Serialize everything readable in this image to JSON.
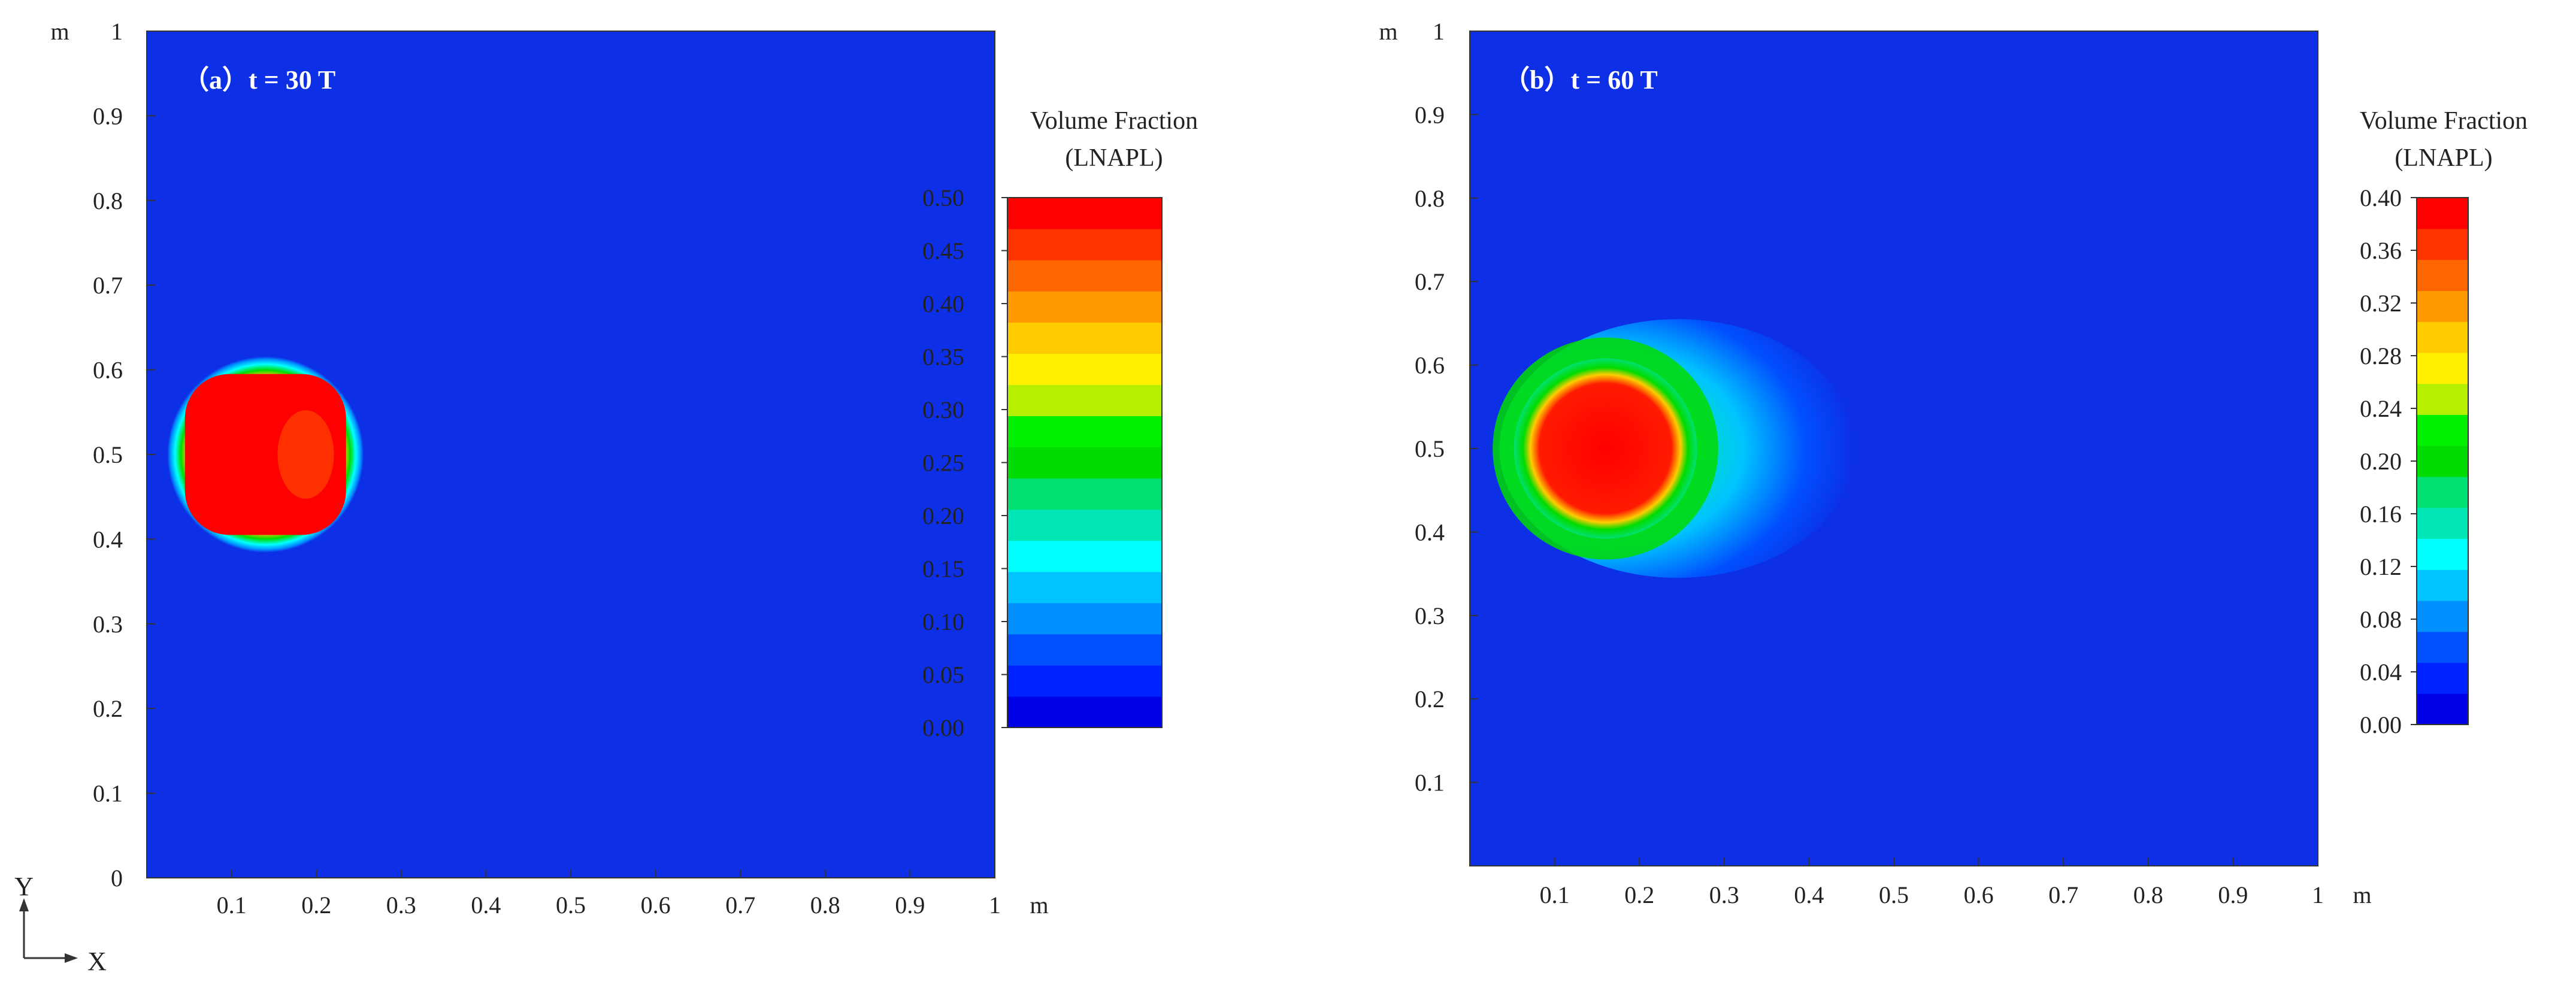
{
  "chart_data": [
    {
      "type": "heatmap",
      "panel_label": "（a）t = 30 T",
      "x_axis_unit": "m",
      "y_axis_unit": "m",
      "x_ticks": [
        "0.1",
        "0.2",
        "0.3",
        "0.4",
        "0.5",
        "0.6",
        "0.7",
        "0.8",
        "0.9",
        "1"
      ],
      "y_ticks": [
        "0",
        "0.1",
        "0.2",
        "0.3",
        "0.4",
        "0.5",
        "0.6",
        "0.7",
        "0.8",
        "0.9",
        "1"
      ],
      "xlim": [
        0,
        1
      ],
      "ylim": [
        0,
        1
      ],
      "colorbar": {
        "title_line1": "Volume Fraction",
        "title_line2": "(LNAPL)",
        "range": [
          0,
          0.5
        ],
        "ticks": [
          "0.50",
          "0.45",
          "0.40",
          "0.35",
          "0.30",
          "0.25",
          "0.20",
          "0.15",
          "0.10",
          "0.05",
          "0.00"
        ],
        "colors": [
          "#0000e6",
          "#0022ff",
          "#0050ff",
          "#0090ff",
          "#00c4ff",
          "#00ffff",
          "#00e6b4",
          "#00e070",
          "#00dc00",
          "#00f000",
          "#b4f000",
          "#fff000",
          "#ffcc00",
          "#ff9900",
          "#ff6600",
          "#ff3300",
          "#ff0000"
        ]
      },
      "plume": {
        "center_x": 0.14,
        "center_y": 0.5,
        "radius_x": 0.095,
        "radius_y": 0.095,
        "max_fraction": 0.5,
        "tail_x": 0.0
      },
      "axis_indicator": {
        "y_label": "Y",
        "x_label": "X"
      }
    },
    {
      "type": "heatmap",
      "panel_label": "（b）t = 60 T",
      "x_axis_unit": "m",
      "y_axis_unit": "m",
      "x_ticks": [
        "0.1",
        "0.2",
        "0.3",
        "0.4",
        "0.5",
        "0.6",
        "0.7",
        "0.8",
        "0.9",
        "1"
      ],
      "y_ticks": [
        "0.1",
        "0.2",
        "0.3",
        "0.4",
        "0.5",
        "0.6",
        "0.7",
        "0.8",
        "0.9",
        "1"
      ],
      "xlim": [
        0,
        1
      ],
      "ylim": [
        0,
        1
      ],
      "colorbar": {
        "title_line1": "Volume Fraction",
        "title_line2": "(LNAPL)",
        "range": [
          0,
          0.4
        ],
        "ticks": [
          "0.40",
          "0.36",
          "0.32",
          "0.28",
          "0.24",
          "0.20",
          "0.16",
          "0.12",
          "0.08",
          "0.04",
          "0.00"
        ],
        "colors": [
          "#0000e6",
          "#0022ff",
          "#0050ff",
          "#0090ff",
          "#00c4ff",
          "#00ffff",
          "#00e6b4",
          "#00e070",
          "#00dc00",
          "#00f000",
          "#b4f000",
          "#fff000",
          "#ffcc00",
          "#ff9900",
          "#ff6600",
          "#ff3300",
          "#ff0000"
        ]
      },
      "plume": {
        "center_x": 0.16,
        "center_y": 0.5,
        "radius_x": 0.1,
        "radius_y": 0.1,
        "max_fraction": 0.4,
        "tail_x": 0.37
      }
    }
  ],
  "background_color": "#0d2fe6"
}
